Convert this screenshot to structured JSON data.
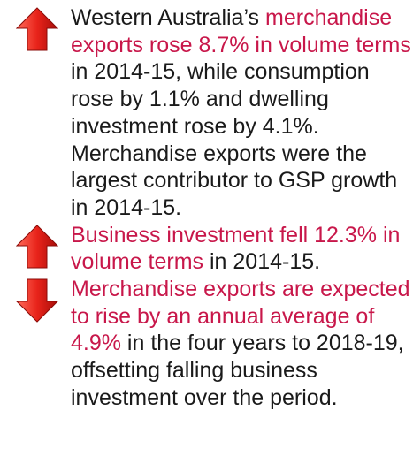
{
  "items": [
    {
      "icon": "up",
      "segments": [
        {
          "text": "Western Australia’s ",
          "highlight": false
        },
        {
          "text": "merchandise exports rose 8.7% in volume terms",
          "highlight": true
        },
        {
          "text": " in 2014-15, while consumption rose by 1.1% and dwelling investment rose by 4.1%. Merchandise exports were the largest contributor to GSP growth in 2014-15.",
          "highlight": false
        }
      ]
    },
    {
      "icon": "up",
      "segments": [
        {
          "text": "Business investment fell 12.3% in volume terms",
          "highlight": true
        },
        {
          "text": " in 2014-15.",
          "highlight": false
        }
      ]
    },
    {
      "icon": "down",
      "segments": [
        {
          "text": "Merchandise exports are expected to rise by an annual average of 4.9%",
          "highlight": true
        },
        {
          "text": " in the four years to 2018-19, offsetting falling business investment over the period.",
          "highlight": false
        }
      ]
    }
  ]
}
